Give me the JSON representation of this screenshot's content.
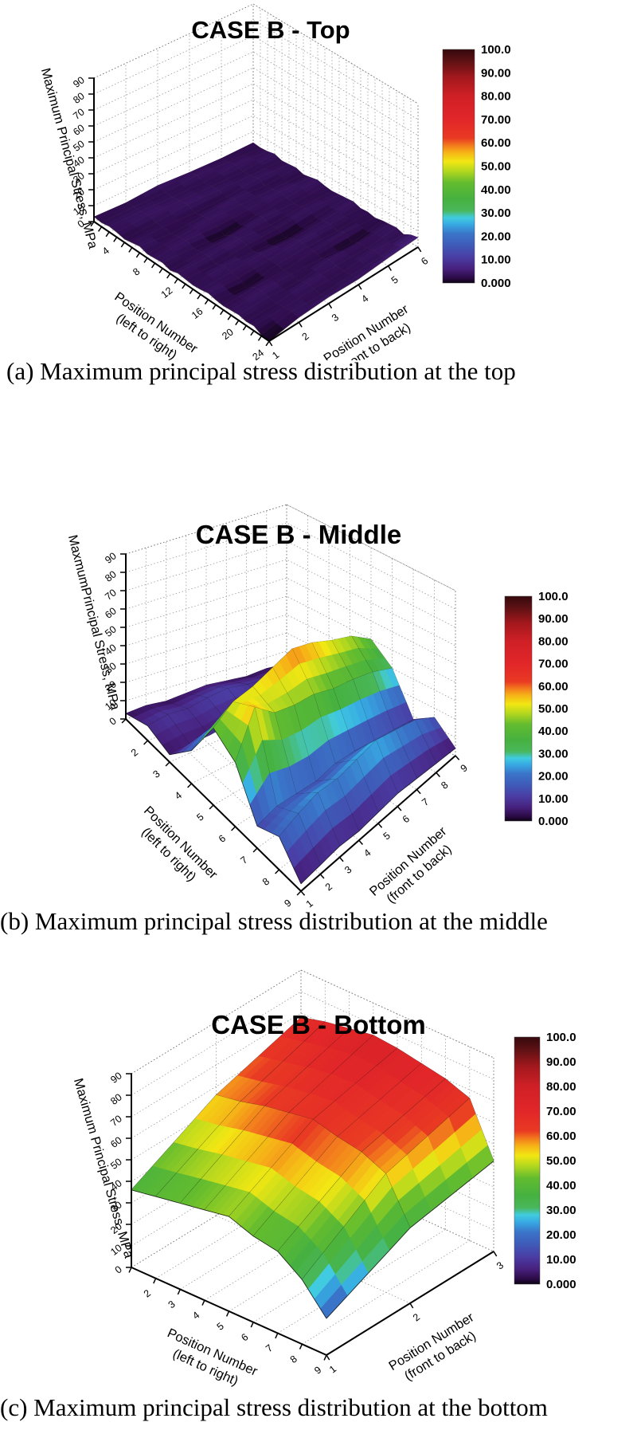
{
  "page": {
    "background": "#ffffff"
  },
  "colormap": [
    [
      0,
      "#0b0310"
    ],
    [
      2,
      "#2a0a44"
    ],
    [
      6,
      "#47207c"
    ],
    [
      11,
      "#4a3da4"
    ],
    [
      16,
      "#3f5ab8"
    ],
    [
      21,
      "#3a74c8"
    ],
    [
      25,
      "#37a8e2"
    ],
    [
      28,
      "#41cce0"
    ],
    [
      31,
      "#49b75a"
    ],
    [
      36,
      "#46b140"
    ],
    [
      43,
      "#63bc2e"
    ],
    [
      48,
      "#b5d81e"
    ],
    [
      52,
      "#f2e713"
    ],
    [
      56,
      "#f6b117"
    ],
    [
      59,
      "#f2791d"
    ],
    [
      62,
      "#e93a23"
    ],
    [
      70,
      "#e22629"
    ],
    [
      80,
      "#cf2026"
    ],
    [
      88,
      "#a3181d"
    ],
    [
      95,
      "#5d1114"
    ],
    [
      100,
      "#35090d"
    ]
  ],
  "chart_data": [
    {
      "type": "surface",
      "title": "CASE B - Top",
      "caption": "(a) Maximum principal stress distribution at the top",
      "zlabel": "Maximum Principal Stress, MPa",
      "xlabel": [
        "Position Number",
        "(left to right)"
      ],
      "ylabel": [
        "Position Number",
        "(front to back)"
      ],
      "x_range": [
        1,
        24
      ],
      "y_range": [
        1,
        6
      ],
      "zlim": [
        0,
        90
      ],
      "z_ticks": [
        0,
        10,
        20,
        30,
        40,
        50,
        60,
        70,
        80,
        90
      ],
      "x_tick_labels": [
        4,
        8,
        12,
        16,
        20,
        24
      ],
      "y_tick_labels": [
        1,
        2,
        3,
        4,
        5,
        6
      ],
      "colorbar": {
        "min": 0,
        "max": 100,
        "labels": [
          "100.0",
          "90.00",
          "80.00",
          "70.00",
          "60.00",
          "50.00",
          "40.00",
          "30.00",
          "20.00",
          "10.00",
          "0.000"
        ]
      },
      "z_units": "MPa",
      "z": [
        [
          3,
          2.5,
          3.5,
          3,
          2,
          3,
          4,
          2.5,
          3,
          3.5,
          2,
          3.5,
          3,
          2.5,
          3,
          4,
          3,
          2.5,
          3,
          3.5,
          2.5,
          3,
          0.5,
          0
        ],
        [
          2.5,
          3,
          3.5,
          4,
          2.5,
          3,
          2,
          3,
          4,
          2.5,
          3,
          3.5,
          2,
          4,
          3,
          2.5,
          0,
          3,
          4,
          3,
          2.5,
          3,
          3.5,
          3
        ],
        [
          4,
          2.5,
          3,
          3.5,
          4,
          2,
          3,
          4,
          2.5,
          0,
          3,
          4,
          3,
          2,
          4,
          3,
          3,
          2.5,
          3,
          2,
          4,
          3,
          2.5,
          4
        ],
        [
          3,
          4,
          2.5,
          3,
          3.5,
          2,
          4,
          3,
          3,
          2.5,
          4,
          2,
          3,
          0,
          2.5,
          4,
          3,
          3,
          2,
          4,
          3,
          2.5,
          3,
          3.5
        ],
        [
          2.5,
          3,
          4,
          2.5,
          3,
          4,
          2,
          3,
          4,
          3,
          2.5,
          3,
          4,
          2,
          3,
          3.5,
          2,
          4,
          0,
          3,
          2.5,
          4,
          3,
          5
        ],
        [
          3,
          2.5,
          3,
          4,
          2.5,
          3,
          3.5,
          2,
          3,
          4,
          3,
          2.5,
          3,
          3.5,
          4,
          2.5,
          3,
          2,
          3,
          3.5,
          4,
          2.5,
          5,
          6
        ]
      ]
    },
    {
      "type": "surface",
      "title": "CASE B - Middle",
      "caption": "(b) Maximum principal stress distribution at the middle",
      "zlabel": "MaxmumPrincipal Stress, MPa",
      "xlabel": [
        "Position Number",
        "(left to right)"
      ],
      "ylabel": [
        "Position Number",
        "(front to back)"
      ],
      "x_range": [
        1,
        9
      ],
      "y_range": [
        1,
        9
      ],
      "zlim": [
        0,
        90
      ],
      "z_ticks": [
        0,
        10,
        20,
        30,
        40,
        50,
        60,
        70,
        80,
        90
      ],
      "x_tick_labels": [
        2,
        3,
        4,
        5,
        6,
        7,
        8,
        9
      ],
      "y_tick_labels": [
        1,
        2,
        3,
        4,
        5,
        6,
        7,
        8,
        9
      ],
      "colorbar": {
        "min": 0,
        "max": 100,
        "labels": [
          "100.0",
          "90.00",
          "80.00",
          "70.00",
          "60.00",
          "50.00",
          "40.00",
          "30.00",
          "20.00",
          "10.00",
          "0.000"
        ]
      },
      "z_units": "MPa",
      "z": [
        [
          3,
          8,
          4,
          18,
          42,
          35,
          12,
          18,
          4
        ],
        [
          4,
          10,
          5,
          25,
          50,
          58,
          15,
          22,
          5
        ],
        [
          3,
          9,
          5,
          28,
          52,
          48,
          14,
          25,
          6
        ],
        [
          4,
          11,
          6,
          32,
          56,
          45,
          13,
          24,
          5
        ],
        [
          5,
          12,
          6,
          35,
          60,
          44,
          15,
          26,
          6
        ],
        [
          4,
          10,
          5,
          33,
          57,
          40,
          14,
          28,
          7
        ],
        [
          3,
          9,
          5,
          30,
          52,
          38,
          12,
          25,
          6
        ],
        [
          4,
          8,
          4,
          26,
          48,
          35,
          10,
          22,
          5
        ],
        [
          3,
          6,
          4,
          20,
          40,
          30,
          8,
          15,
          4
        ]
      ]
    },
    {
      "type": "surface",
      "title": "CASE B - Bottom",
      "caption": "(c) Maximum principal stress distribution at the bottom",
      "zlabel": "Maximum Principal Stress, MPa",
      "xlabel": [
        "Position Number",
        "(left to right)"
      ],
      "ylabel": [
        "Position Number",
        "(front to back)"
      ],
      "x_range": [
        1,
        9
      ],
      "y_range": [
        1,
        3
      ],
      "zlim": [
        0,
        90
      ],
      "z_ticks": [
        0,
        10,
        20,
        30,
        40,
        50,
        60,
        70,
        80,
        90
      ],
      "x_tick_labels": [
        2,
        3,
        4,
        5,
        6,
        7,
        8,
        9
      ],
      "y_tick_labels": [
        1,
        2,
        3
      ],
      "colorbar": {
        "min": 0,
        "max": 100,
        "labels": [
          "100.0",
          "90.00",
          "80.00",
          "70.00",
          "60.00",
          "50.00",
          "40.00",
          "30.00",
          "20.00",
          "10.00",
          "0.000"
        ]
      },
      "z_units": "MPa",
      "z": [
        [
          36,
          38,
          40,
          42,
          44,
          40,
          38,
          30,
          17
        ],
        [
          56,
          58,
          61,
          63,
          65,
          62,
          60,
          55,
          35
        ],
        [
          68,
          71,
          73,
          75,
          74,
          72,
          70,
          66,
          42
        ]
      ]
    }
  ]
}
